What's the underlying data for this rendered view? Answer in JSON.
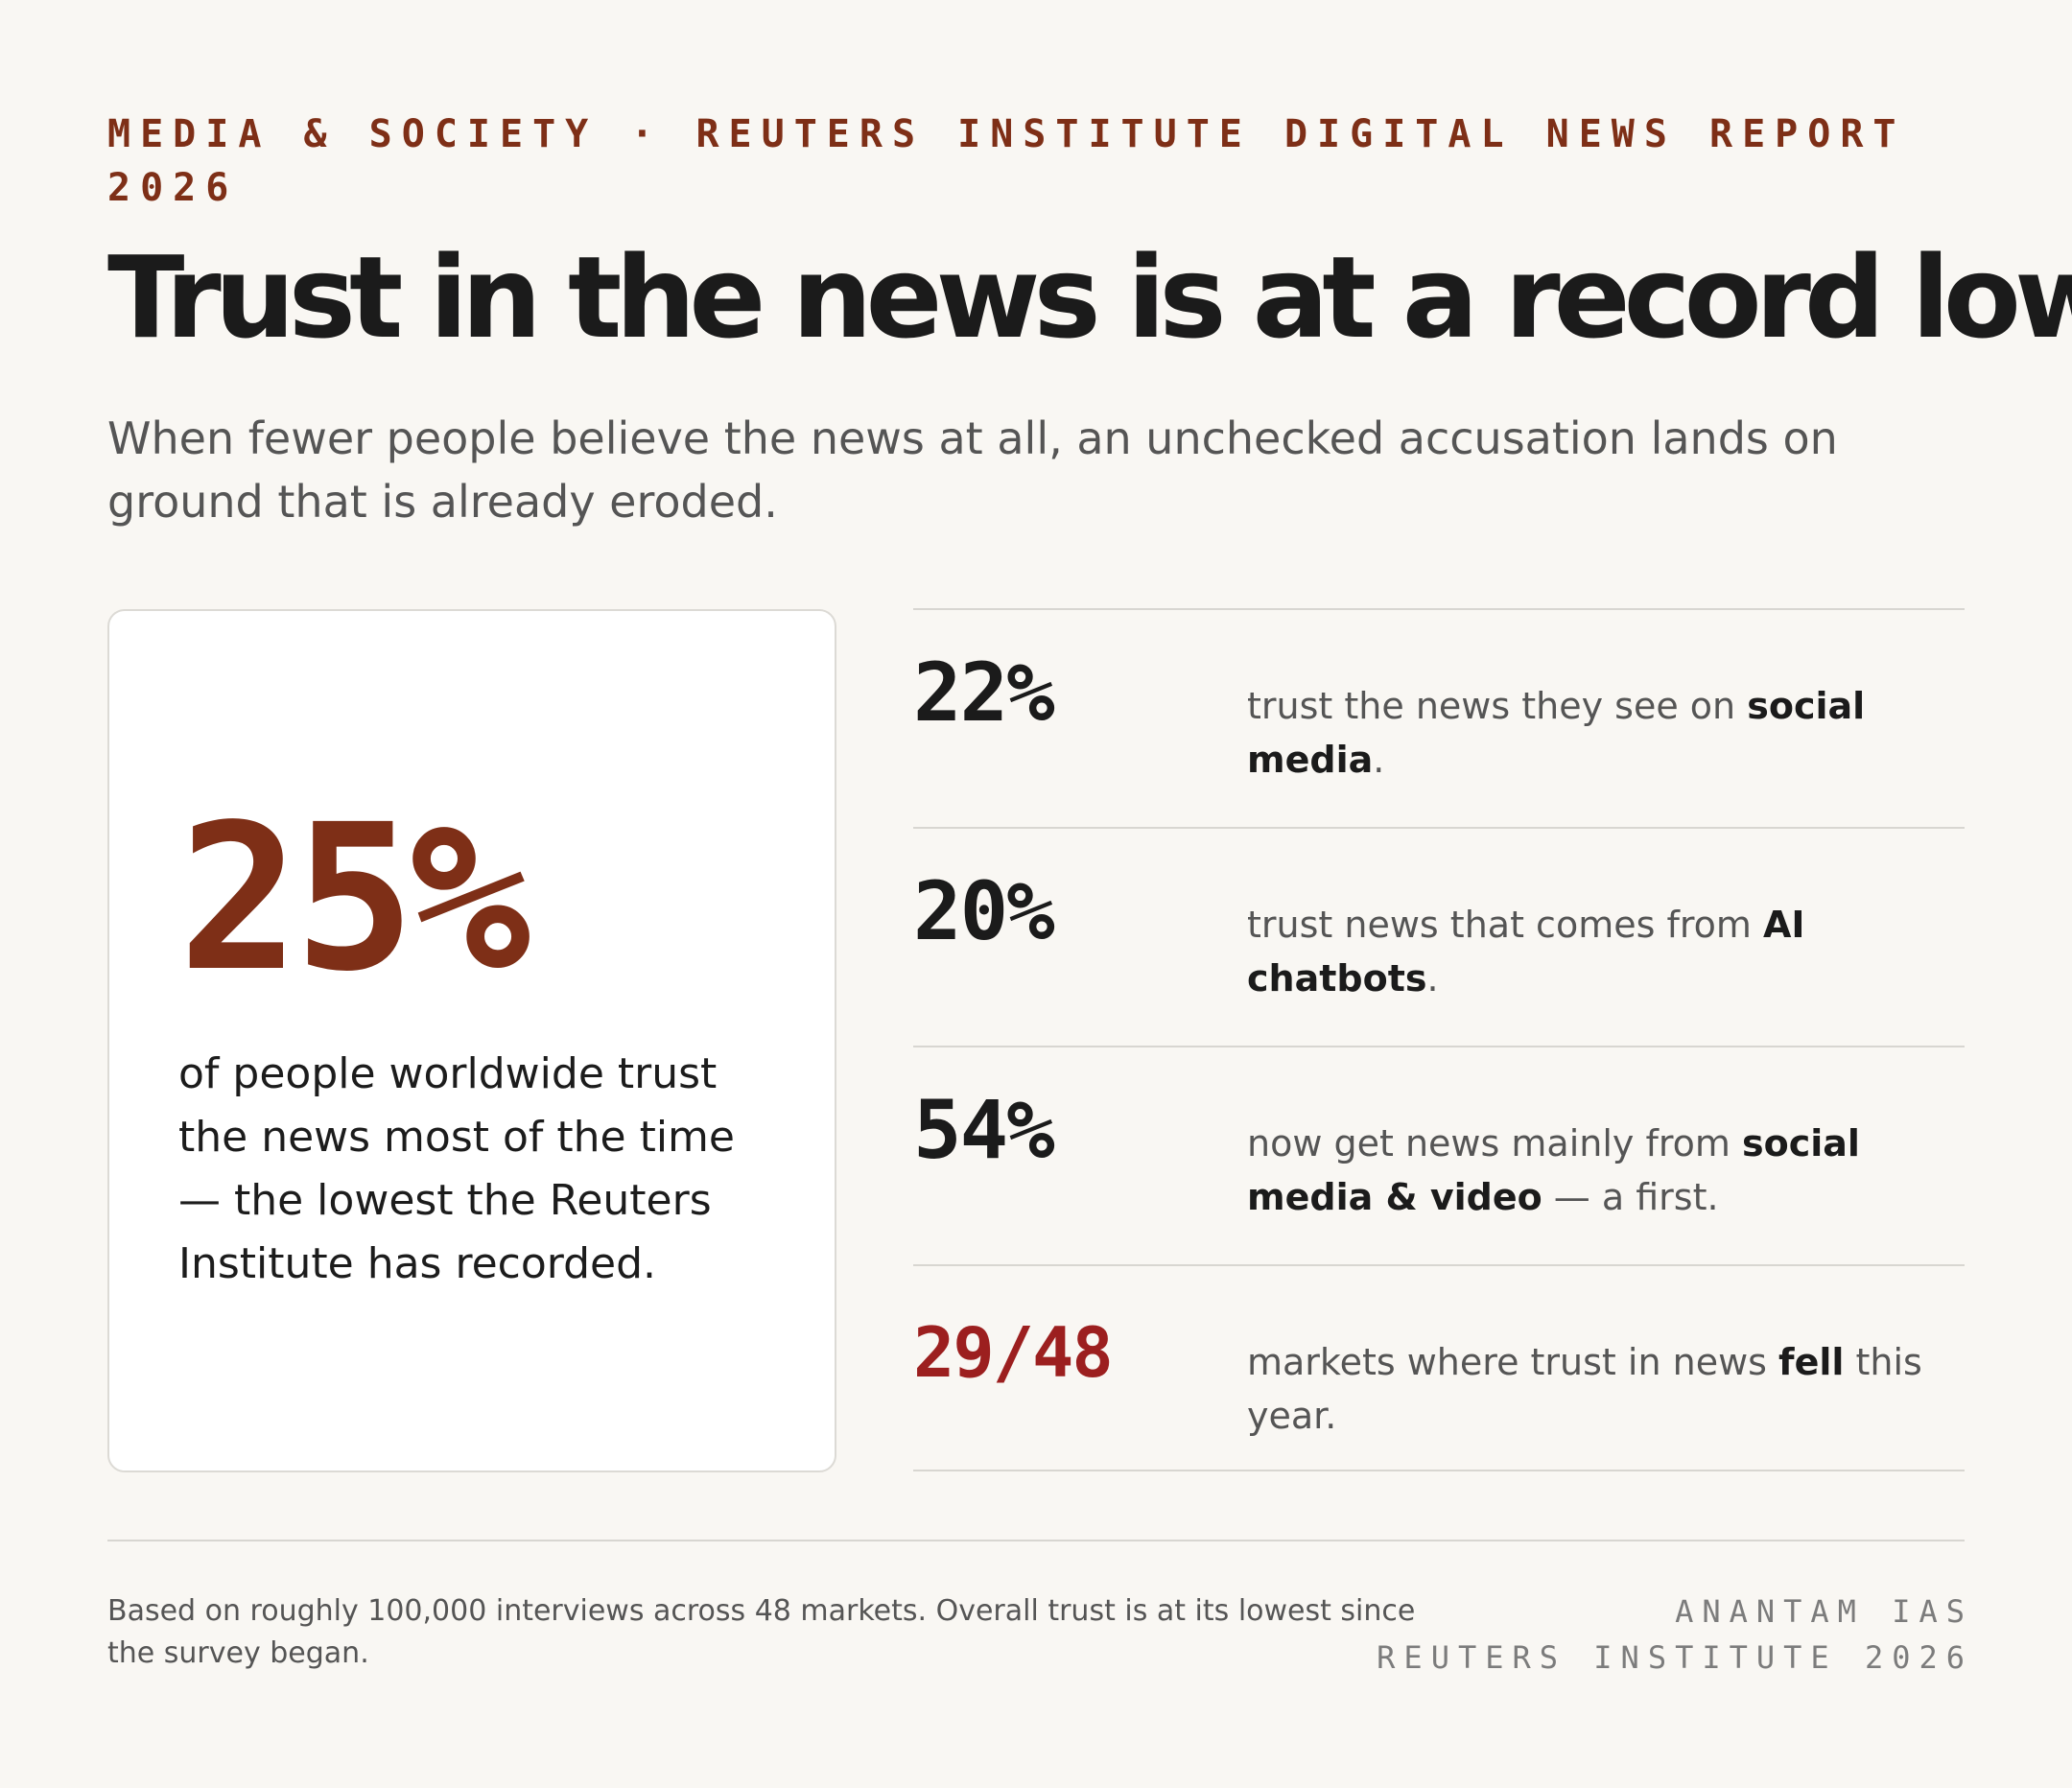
{
  "kicker": "MEDIA & SOCIETY · REUTERS INSTITUTE DIGITAL NEWS REPORT 2026",
  "headline": "Trust in the news is at a record low",
  "subhead": "When fewer people believe the news at all, an unchecked accusation lands on ground that is already eroded.",
  "highlight": {
    "value": "25%",
    "description": "of people worldwide trust the news most of the time — the lowest the Reuters Institute has recorded."
  },
  "stats": [
    {
      "value": "22%",
      "text_before": "trust the news they see on ",
      "text_bold": "social media",
      "text_after": "."
    },
    {
      "value": "20%",
      "text_before": "trust news that comes from ",
      "text_bold": "AI chatbots",
      "text_after": "."
    },
    {
      "value": "54%",
      "text_before": "now get news mainly from ",
      "text_bold": "social media & video",
      "text_after": " — a first."
    },
    {
      "value": "29/48",
      "text_before": "markets where trust in news ",
      "text_bold": "fell",
      "text_after": " this year."
    }
  ],
  "footnote": "Based on roughly 100,000 interviews across 48 markets. Overall trust is at its lowest since the survey began.",
  "credits": {
    "line1": "ANANTAM IAS",
    "line2": "REUTERS INSTITUTE 2026"
  },
  "colors": {
    "accent": "#7e2f17",
    "alert": "#9c1f1f",
    "background": "#f9f7f3"
  }
}
